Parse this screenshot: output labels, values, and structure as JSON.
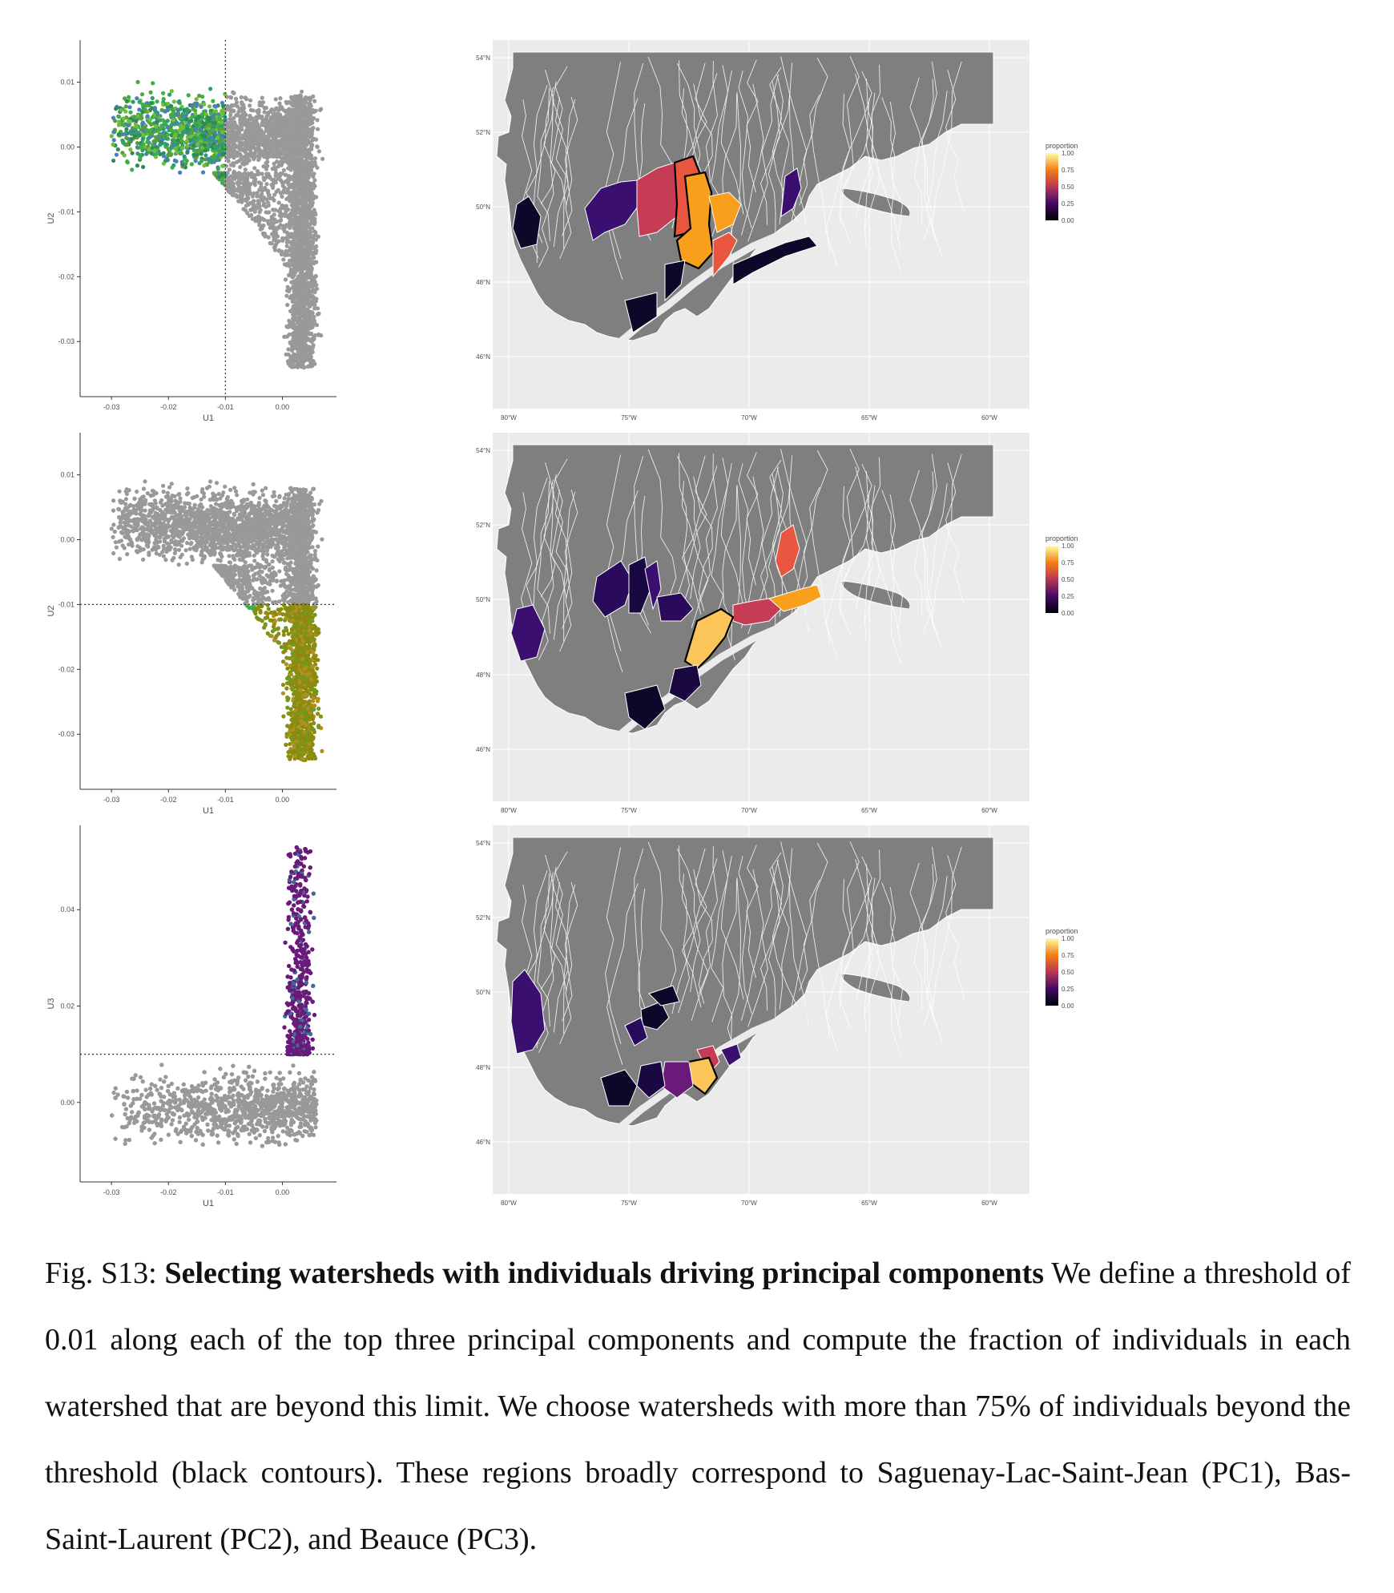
{
  "scatter_panels": [
    {
      "xlabel": "U1",
      "ylabel": "U2",
      "x_ticks": [
        "-0.03",
        "-0.02",
        "-0.01",
        "0.00"
      ],
      "y_ticks": [
        "0.01",
        "0.00",
        "-0.01",
        "-0.02",
        "-0.03"
      ],
      "threshold_note": "vertical dotted line at U1 = -0.01"
    },
    {
      "xlabel": "U1",
      "ylabel": "U2",
      "x_ticks": [
        "-0.03",
        "-0.02",
        "-0.01",
        "0.00"
      ],
      "y_ticks": [
        "0.01",
        "0.00",
        "-0.01",
        "-0.02",
        "-0.03"
      ],
      "threshold_note": "horizontal dotted line at U2 = -0.01"
    },
    {
      "xlabel": "U1",
      "ylabel": "U3",
      "x_ticks": [
        "-0.03",
        "-0.02",
        "-0.01",
        "0.00"
      ],
      "y_ticks": [
        "0.04",
        "0.02",
        "0.00"
      ],
      "threshold_note": "horizontal dotted line at U3 = 0.01"
    }
  ],
  "map_panels": [
    {
      "lat_ticks": [
        "54°N",
        "52°N",
        "50°N",
        "48°N",
        "46°N"
      ],
      "lon_ticks": [
        "80°W",
        "75°W",
        "70°W",
        "65°W",
        "60°W"
      ],
      "legend": {
        "title": "proportion",
        "ticks": [
          "1.00",
          "0.75",
          "0.50",
          "0.25",
          "0.00"
        ]
      }
    },
    {
      "lat_ticks": [
        "54°N",
        "52°N",
        "50°N",
        "48°N",
        "46°N"
      ],
      "lon_ticks": [
        "80°W",
        "75°W",
        "70°W",
        "65°W",
        "60°W"
      ],
      "legend": {
        "title": "proportion",
        "ticks": [
          "1.00",
          "0.75",
          "0.50",
          "0.25",
          "0.00"
        ]
      }
    },
    {
      "lat_ticks": [
        "54°N",
        "52°N",
        "50°N",
        "48°N",
        "46°N"
      ],
      "lon_ticks": [
        "80°W",
        "75°W",
        "70°W",
        "65°W",
        "60°W"
      ],
      "legend": {
        "title": "proportion",
        "ticks": [
          "1.00",
          "0.75",
          "0.50",
          "0.25",
          "0.00"
        ]
      }
    }
  ],
  "colors": {
    "gray_points": "#999999",
    "green_points": "#3cb043",
    "olive_points": "#8b8b10",
    "purple_points": "#6a1b7a",
    "map_land": "#7f7f7f",
    "map_background": "#ebebeb",
    "inferno_low": "#000004",
    "inferno_mid": "#b83655",
    "inferno_high": "#fcffa4"
  },
  "caption": {
    "label": "Fig. S13:",
    "title": "Selecting watersheds with individuals driving principal components",
    "body": "We define a threshold of 0.01 along each of the top three principal components and compute the fraction of individuals in each watershed that are beyond this limit. We choose watersheds with more than 75% of individuals beyond the threshold (black contours). These regions broadly correspond to Saguenay-Lac-Saint-Jean (PC1), Bas-Saint-Laurent (PC2), and Beauce (PC3)."
  }
}
